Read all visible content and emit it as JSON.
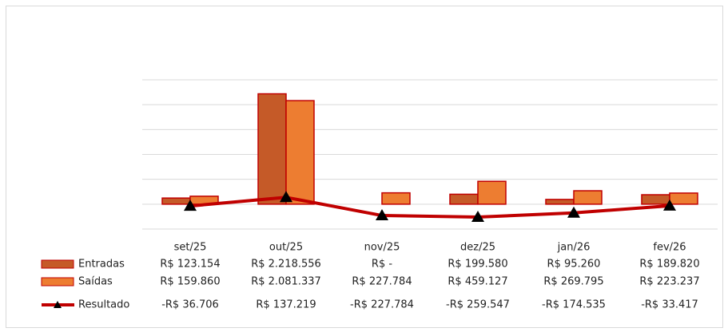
{
  "chart_data": {
    "type": "bar",
    "categories": [
      "set/25",
      "out/25",
      "nov/25",
      "dez/25",
      "jan/26",
      "fev/26"
    ],
    "series": [
      {
        "name": "Entradas",
        "color": "#c55a28",
        "border": "#c00000",
        "values": [
          123154,
          2218556,
          0,
          199580,
          95260,
          189820
        ],
        "value_labels": [
          "R$ 123.154",
          "R$ 2.218.556",
          "R$ -",
          "R$ 199.580",
          "R$ 95.260",
          "R$ 189.820"
        ]
      },
      {
        "name": "Saídas",
        "color": "#ed7d31",
        "border": "#c00000",
        "values": [
          159860,
          2081337,
          227784,
          459127,
          269795,
          223237
        ],
        "value_labels": [
          "R$ 159.860",
          "R$ 2.081.337",
          "R$ 227.784",
          "R$ 459.127",
          "R$ 269.795",
          "R$ 223.237"
        ]
      },
      {
        "name": "Resultado",
        "type": "line",
        "color": "#c00000",
        "marker": "#000000",
        "values": [
          -36706,
          137219,
          -227784,
          -259547,
          -174535,
          -33417
        ],
        "value_labels": [
          "-R$ 36.706",
          "R$ 137.219",
          "-R$ 227.784",
          "-R$ 259.547",
          "-R$ 174.535",
          "-R$ 33.417"
        ]
      }
    ],
    "ylim": [
      -500000,
      2500000
    ],
    "yticks": [
      -500000,
      0,
      500000,
      1000000,
      1500000,
      2000000,
      2500000
    ],
    "grid": true
  }
}
